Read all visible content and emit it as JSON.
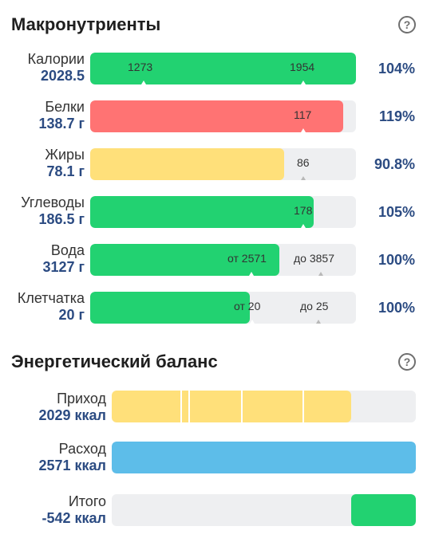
{
  "macros": {
    "title": "Макронутриенты",
    "help_icon": "?",
    "rows": [
      {
        "name": "Калории",
        "value": "2028.5",
        "pct": "104%",
        "fill": 1.0,
        "color": "#22d271",
        "marks": [
          {
            "text": "1273",
            "pos": 0.2
          },
          {
            "text": "1954",
            "pos": 0.8
          }
        ]
      },
      {
        "name": "Белки",
        "value": "138.7 г",
        "pct": "119%",
        "fill": 0.95,
        "color": "#ff7373",
        "marks": [
          {
            "text": "117",
            "pos": 0.8
          }
        ]
      },
      {
        "name": "Жиры",
        "value": "78.1 г",
        "pct": "90.8%",
        "fill": 0.73,
        "color": "#ffe07a",
        "marks": [
          {
            "text": "86",
            "pos": 0.8
          }
        ]
      },
      {
        "name": "Углеводы",
        "value": "186.5 г",
        "pct": "105%",
        "fill": 0.84,
        "color": "#22d271",
        "marks": [
          {
            "text": "178",
            "pos": 0.8
          }
        ]
      },
      {
        "name": "Вода",
        "value": "3127 г",
        "pct": "100%",
        "fill": 0.71,
        "color": "#22d271",
        "marks": [
          {
            "text": "от 2571",
            "pos": 0.6
          },
          {
            "text": "до 3857",
            "pos": 0.86
          }
        ]
      },
      {
        "name": "Клетчатка",
        "value": "20 г",
        "pct": "100%",
        "fill": 0.6,
        "color": "#22d271",
        "marks": [
          {
            "text": "от 20",
            "pos": 0.6
          },
          {
            "text": "до 25",
            "pos": 0.85
          }
        ]
      }
    ]
  },
  "energy": {
    "title": "Энергетический баланс",
    "help_icon": "?",
    "rows": [
      {
        "name": "Приход",
        "value": "2029 ккал",
        "color": "#ffe07a"
      },
      {
        "name": "Расход",
        "value": "2571 ккал",
        "color": "#5dbde9"
      },
      {
        "name": "Итого",
        "value": "-542 ккал",
        "color": "#22d271"
      }
    ]
  }
}
